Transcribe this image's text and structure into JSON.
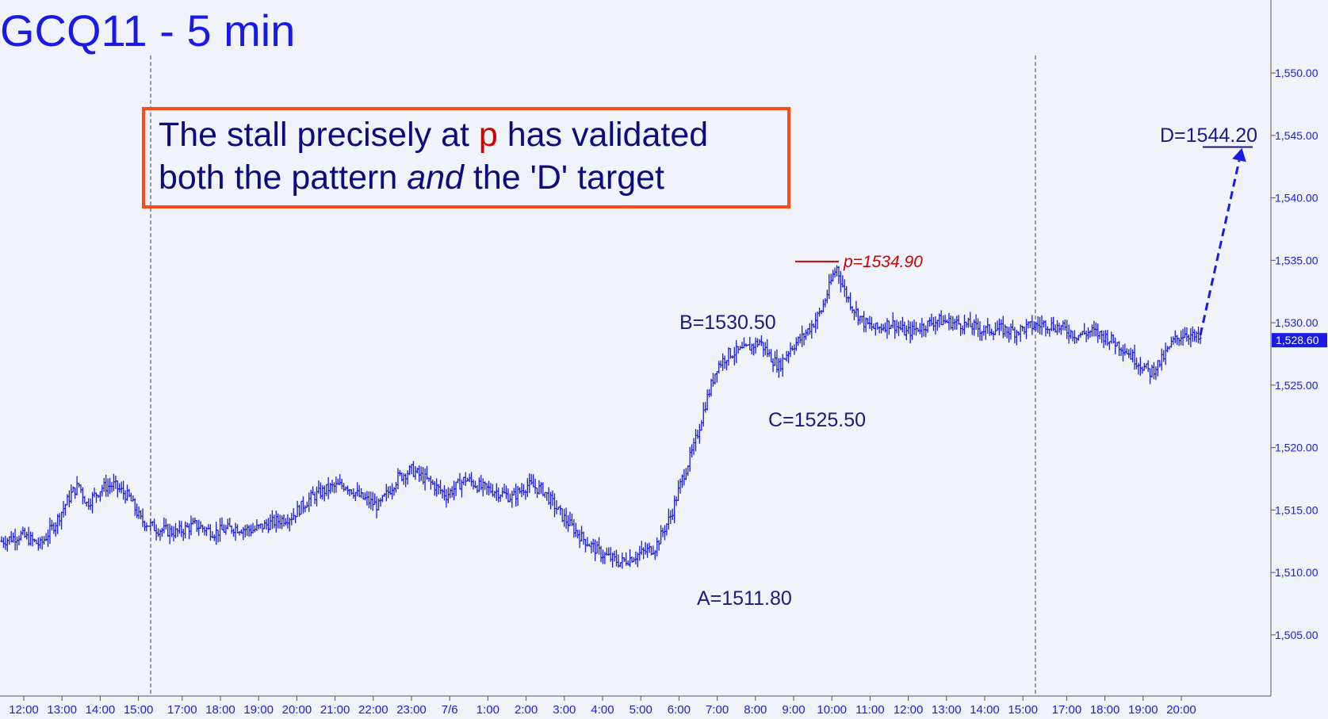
{
  "chart_data": {
    "type": "ohlc",
    "title": "GCQ11 - 5 min",
    "y_axis": {
      "min": 1502,
      "max": 1555,
      "ticks": [
        "1,505.00",
        "1,510.00",
        "1,515.00",
        "1,520.00",
        "1,525.00",
        "1,530.00",
        "1,535.00",
        "1,540.00",
        "1,545.00",
        "1,550.00"
      ],
      "tick_values": [
        1505,
        1510,
        1515,
        1520,
        1525,
        1530,
        1535,
        1540,
        1545,
        1550
      ],
      "position": "right"
    },
    "x_axis": {
      "ticks": [
        "12:00",
        "13:00",
        "14:00",
        "15:00",
        "17:00",
        "18:00",
        "19:00",
        "20:00",
        "21:00",
        "22:00",
        "23:00",
        "7/6",
        "1:00",
        "2:00",
        "3:00",
        "4:00",
        "5:00",
        "6:00",
        "7:00",
        "8:00",
        "9:00",
        "10:00",
        "11:00",
        "12:00",
        "13:00",
        "14:00",
        "15:00",
        "17:00",
        "18:00",
        "19:00",
        "20:00"
      ]
    },
    "last_price": {
      "label": "1,528.60",
      "value": 1528.6
    },
    "series_path": [
      [
        0,
        1512.5
      ],
      [
        10,
        1513.0
      ],
      [
        20,
        1512.2
      ],
      [
        28,
        1514.0
      ],
      [
        36,
        1516.3
      ],
      [
        40,
        1517.0
      ],
      [
        44,
        1515.5
      ],
      [
        52,
        1516.8
      ],
      [
        58,
        1517.0
      ],
      [
        66,
        1516.0
      ],
      [
        72,
        1514.2
      ],
      [
        80,
        1513.5
      ],
      [
        90,
        1513.2
      ],
      [
        100,
        1513.8
      ],
      [
        110,
        1513.2
      ],
      [
        120,
        1513.6
      ],
      [
        130,
        1513.4
      ],
      [
        140,
        1514.0
      ],
      [
        150,
        1514.5
      ],
      [
        160,
        1516.0
      ],
      [
        170,
        1516.8
      ],
      [
        178,
        1517.0
      ],
      [
        186,
        1516.0
      ],
      [
        195,
        1515.3
      ],
      [
        205,
        1517.6
      ],
      [
        212,
        1518.2
      ],
      [
        220,
        1517.4
      ],
      [
        230,
        1516.2
      ],
      [
        240,
        1517.5
      ],
      [
        248,
        1516.8
      ],
      [
        256,
        1516.5
      ],
      [
        264,
        1516.0
      ],
      [
        272,
        1517.0
      ],
      [
        280,
        1516.6
      ],
      [
        290,
        1514.5
      ],
      [
        300,
        1512.8
      ],
      [
        310,
        1511.5
      ],
      [
        320,
        1510.8
      ],
      [
        330,
        1511.5
      ],
      [
        338,
        1512.0
      ],
      [
        346,
        1514.5
      ],
      [
        352,
        1517.5
      ],
      [
        358,
        1520.0
      ],
      [
        364,
        1523.5
      ],
      [
        370,
        1526.5
      ],
      [
        376,
        1527.5
      ],
      [
        384,
        1527.8
      ],
      [
        392,
        1528.5
      ],
      [
        398,
        1527.2
      ],
      [
        402,
        1526.5
      ],
      [
        408,
        1528.0
      ],
      [
        414,
        1528.8
      ],
      [
        420,
        1530.0
      ],
      [
        424,
        1531.0
      ],
      [
        428,
        1532.8
      ],
      [
        430,
        1533.8
      ],
      [
        432,
        1534.4
      ],
      [
        436,
        1532.5
      ],
      [
        440,
        1531.3
      ],
      [
        446,
        1530.0
      ],
      [
        452,
        1529.5
      ],
      [
        460,
        1530.0
      ],
      [
        468,
        1529.2
      ],
      [
        476,
        1529.7
      ],
      [
        484,
        1530.2
      ],
      [
        492,
        1530.0
      ],
      [
        500,
        1529.8
      ],
      [
        508,
        1529.4
      ],
      [
        516,
        1529.5
      ],
      [
        524,
        1529.3
      ],
      [
        532,
        1529.7
      ],
      [
        540,
        1529.9
      ],
      [
        548,
        1529.6
      ],
      [
        556,
        1529.0
      ],
      [
        564,
        1529.3
      ],
      [
        572,
        1528.8
      ],
      [
        580,
        1528.0
      ],
      [
        588,
        1526.8
      ],
      [
        594,
        1526.0
      ],
      [
        600,
        1527.0
      ],
      [
        606,
        1528.5
      ],
      [
        612,
        1529.2
      ],
      [
        620,
        1528.6
      ]
    ],
    "annotations": [
      {
        "label": "A=1511.80",
        "value": 1511.8
      },
      {
        "label": "B=1530.50",
        "value": 1530.5
      },
      {
        "label": "C=1525.50",
        "value": 1525.5
      },
      {
        "label": "p=1534.90",
        "value": 1534.9
      },
      {
        "label": "D=1544.20",
        "value": 1544.2
      }
    ],
    "note": {
      "line1_pre": "The stall precisely at ",
      "line1_p": "p",
      "line1_post": " has validated",
      "line2_pre": "both the pattern ",
      "line2_em": "and",
      "line2_post": " the 'D' target"
    },
    "colors": {
      "bars": "#1a1ae6",
      "note_border": "#ff4a1a",
      "p_line": "#cc0000",
      "target_arrow": "#1a1ae6"
    }
  }
}
